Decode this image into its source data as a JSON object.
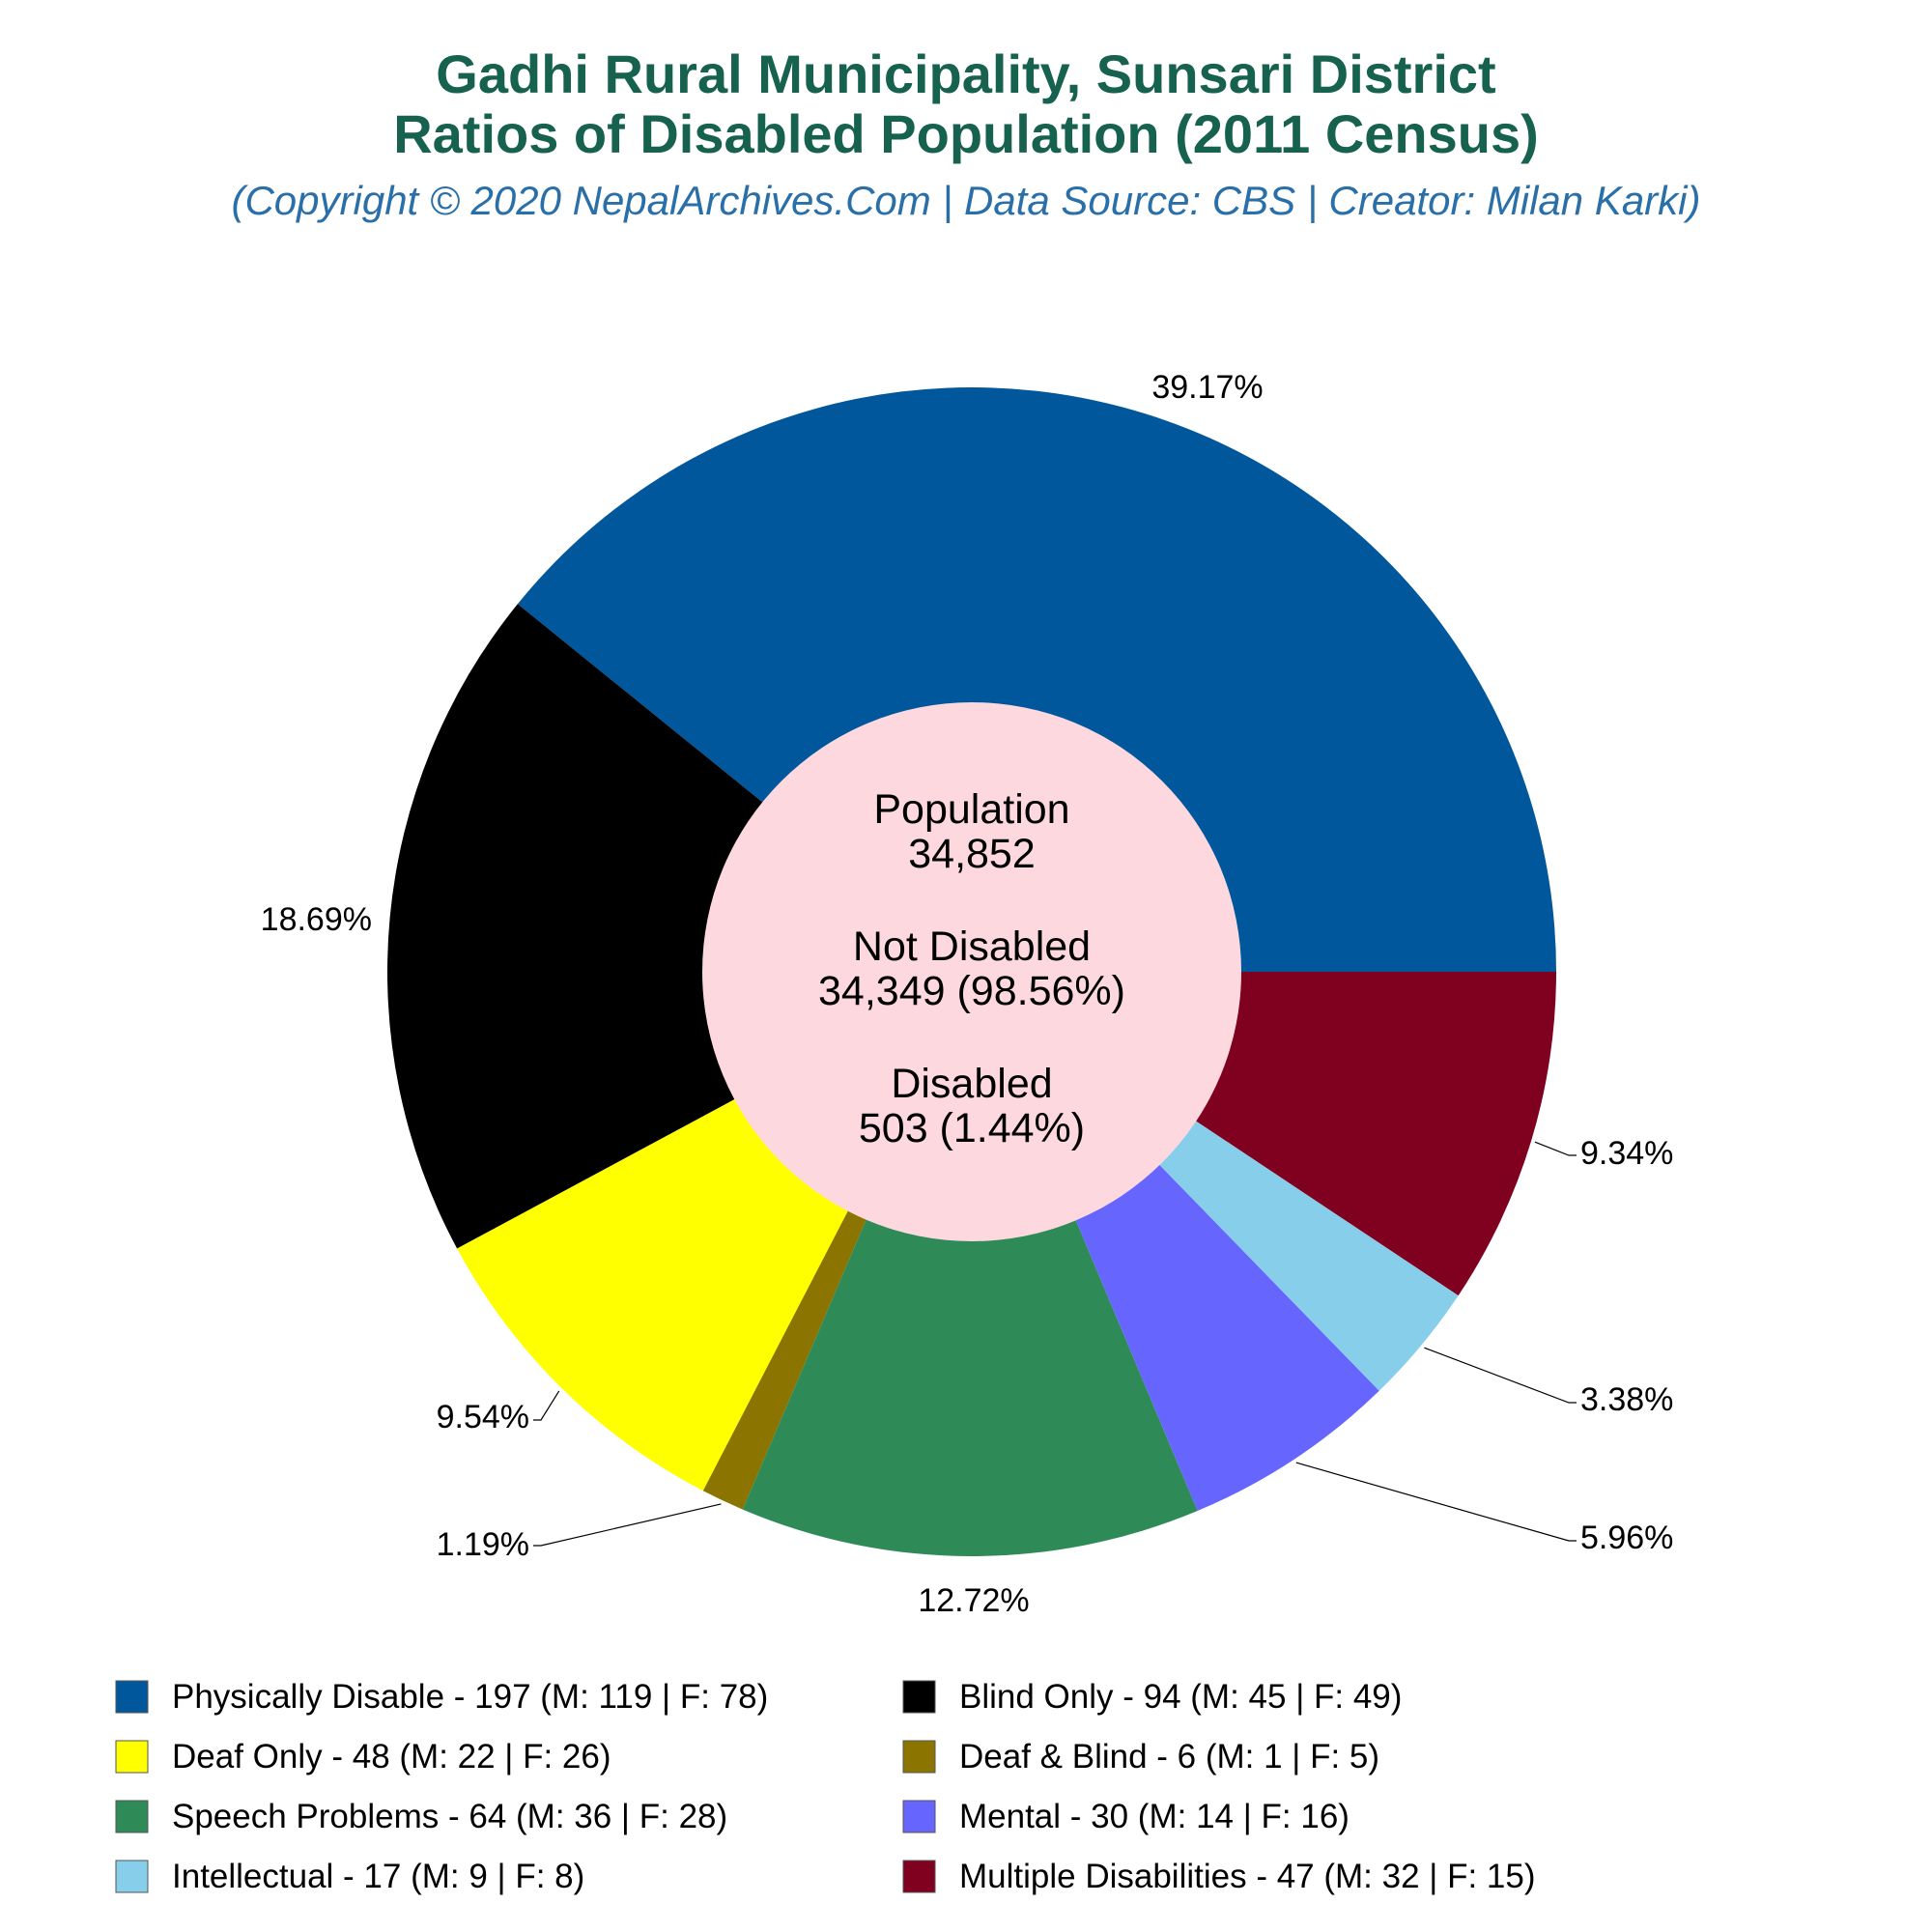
{
  "header": {
    "title_line1": "Gadhi Rural Municipality, Sunsari District",
    "title_line2": "Ratios of Disabled Population (2011 Census)",
    "subtitle": "(Copyright © 2020 NepalArchives.Com | Data Source: CBS | Creator: Milan Karki)"
  },
  "center": {
    "population_label": "Population",
    "population_value": "34,852",
    "not_disabled_label": "Not Disabled",
    "not_disabled_value": "34,349 (98.56%)",
    "disabled_label": "Disabled",
    "disabled_value": "503 (1.44%)",
    "fill_color": "#fdd9df"
  },
  "chart_data": {
    "type": "pie",
    "title": "Gadhi Rural Municipality, Sunsari District Ratios of Disabled Population (2011 Census)",
    "legend_placement": "bottom",
    "slices": [
      {
        "category": "Physically Disable",
        "value": 197,
        "male": 119,
        "female": 78,
        "percent_label": "39.17%",
        "color": "#01579b",
        "legend": "Physically Disable - 197 (M: 119 | F: 78)"
      },
      {
        "category": "Blind Only",
        "value": 94,
        "male": 45,
        "female": 49,
        "percent_label": "18.69%",
        "color": "#000000",
        "legend": "Blind Only - 94 (M: 45 | F: 49)"
      },
      {
        "category": "Deaf Only",
        "value": 48,
        "male": 22,
        "female": 26,
        "percent_label": "9.54%",
        "color": "#ffff00",
        "legend": "Deaf Only - 48 (M: 22 | F: 26)"
      },
      {
        "category": "Deaf & Blind",
        "value": 6,
        "male": 1,
        "female": 5,
        "percent_label": "1.19%",
        "color": "#8b7500",
        "legend": "Deaf & Blind - 6 (M: 1 | F: 5)"
      },
      {
        "category": "Speech Problems",
        "value": 64,
        "male": 36,
        "female": 28,
        "percent_label": "12.72%",
        "color": "#2e8b57",
        "legend": "Speech Problems - 64 (M: 36 | F: 28)"
      },
      {
        "category": "Mental",
        "value": 30,
        "male": 14,
        "female": 16,
        "percent_label": "5.96%",
        "color": "#6666ff",
        "legend": "Mental - 30 (M: 14 | F: 16)"
      },
      {
        "category": "Intellectual",
        "value": 17,
        "male": 9,
        "female": 8,
        "percent_label": "3.38%",
        "color": "#87ceeb",
        "legend": "Intellectual - 17 (M: 9 | F: 8)"
      },
      {
        "category": "Multiple Disabilities",
        "value": 47,
        "male": 32,
        "female": 15,
        "percent_label": "9.34%",
        "color": "#800020",
        "legend": "Multiple Disabilities - 47 (M: 32 | F: 15)"
      }
    ]
  }
}
